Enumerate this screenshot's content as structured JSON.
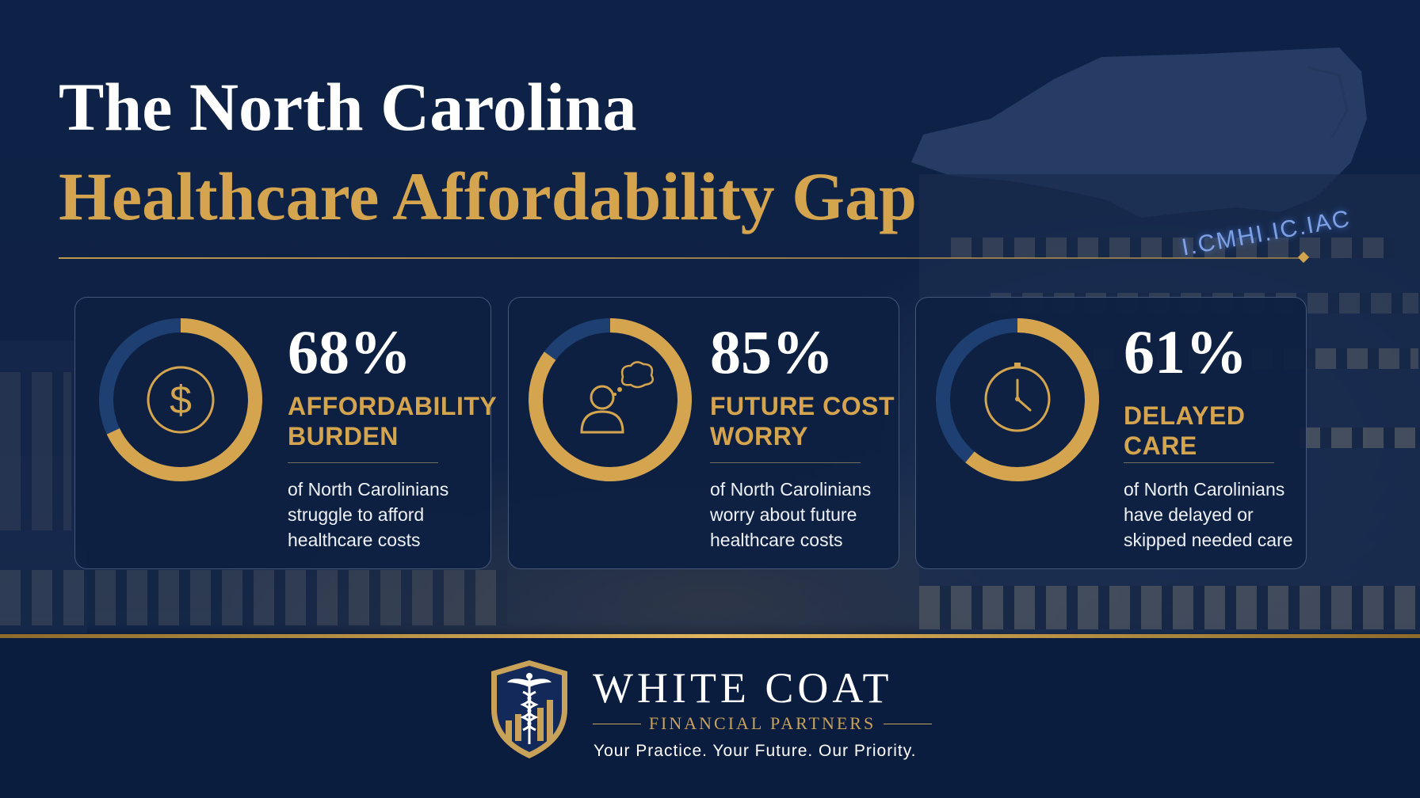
{
  "header": {
    "title_line1": "The North Carolina",
    "title_line2": "Healthcare Affordability Gap"
  },
  "background": {
    "sign_text": "I.CMHI.IC.IAC"
  },
  "stats": [
    {
      "percent": "68%",
      "fraction": 0.68,
      "label_line1": "AFFORDABILITY",
      "label_line2": "BURDEN",
      "description_line1": "of North Carolinians",
      "description_line2": "struggle to afford",
      "description_line3": "healthcare costs",
      "icon": "dollar-coin-icon"
    },
    {
      "percent": "85%",
      "fraction": 0.85,
      "label_line1": "FUTURE COST",
      "label_line2": "WORRY",
      "description_line1": "of North Carolinians",
      "description_line2": "worry about future",
      "description_line3": "healthcare costs",
      "icon": "worried-person-icon"
    },
    {
      "percent": "61%",
      "fraction": 0.61,
      "label_line1": "DELAYED CARE",
      "label_line2": "",
      "description_line1": "of North Carolinians",
      "description_line2": "have delayed or",
      "description_line3": "skipped needed care",
      "icon": "clock-icon"
    }
  ],
  "footer": {
    "brand_name": "WHITE COAT",
    "brand_subtitle": "FINANCIAL PARTNERS",
    "tagline": "Your Practice. Your Future. Our Priority.",
    "logo_icon": "caduceus-shield-icon"
  },
  "colors": {
    "navy": "#0d1e3d",
    "gold": "#d4a54e",
    "ring_track": "#1e3f72",
    "white": "#ffffff"
  }
}
